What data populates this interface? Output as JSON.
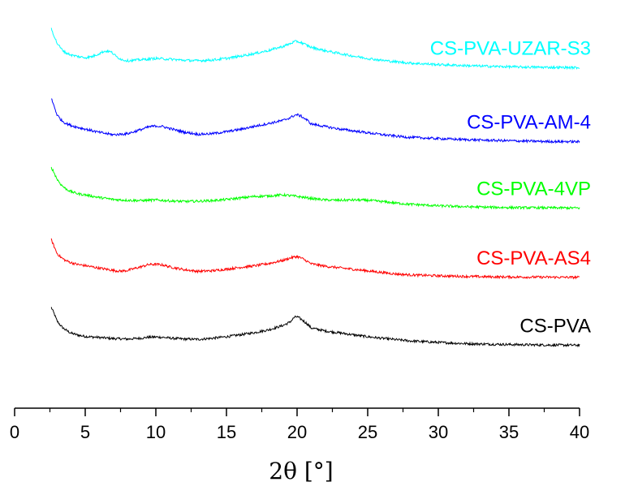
{
  "chart_data": {
    "type": "line",
    "title": "",
    "xlabel": "2θ [°]",
    "ylabel": "",
    "xlim": [
      0,
      40
    ],
    "xticks": [
      0,
      5,
      10,
      15,
      20,
      25,
      30,
      35,
      40
    ],
    "y_axis_visible": false,
    "grid": false,
    "legend": "inline labels at right end of each curve",
    "series": [
      {
        "name": "CS-PVA",
        "color": "#000000",
        "x": [
          2.6,
          2.8,
          3.0,
          3.3,
          3.6,
          4.0,
          4.5,
          5.0,
          6.0,
          7.0,
          8.0,
          9.0,
          9.5,
          10.0,
          10.5,
          11.0,
          12.0,
          13.0,
          14.0,
          15.0,
          16.0,
          17.0,
          18.0,
          19.0,
          19.5,
          19.8,
          20.0,
          20.3,
          20.7,
          21.0,
          22.0,
          23.0,
          24.0,
          25.0,
          26.0,
          27.0,
          28.0,
          30.0,
          32.0,
          34.0,
          36.0,
          38.0,
          40.0
        ],
        "y": [
          5.85,
          5.45,
          4.98,
          4.62,
          4.4,
          4.18,
          4.05,
          3.97,
          3.9,
          3.83,
          3.8,
          3.86,
          3.92,
          3.93,
          3.91,
          3.86,
          3.8,
          3.78,
          3.85,
          3.95,
          4.08,
          4.22,
          4.4,
          4.68,
          4.9,
          5.2,
          5.25,
          5.08,
          4.8,
          4.52,
          4.32,
          4.2,
          4.07,
          3.95,
          3.85,
          3.76,
          3.68,
          3.58,
          3.5,
          3.46,
          3.43,
          3.41,
          3.4
        ]
      },
      {
        "name": "CS-PVA-AS4",
        "color": "#ff0000",
        "x": [
          2.6,
          2.8,
          3.0,
          3.3,
          3.6,
          4.0,
          4.5,
          5.0,
          6.0,
          7.0,
          7.5,
          8.0,
          9.0,
          9.5,
          10.0,
          10.5,
          11.0,
          12.0,
          13.0,
          14.0,
          15.0,
          16.0,
          17.0,
          18.0,
          19.0,
          19.5,
          19.8,
          20.0,
          20.3,
          20.7,
          21.0,
          22.0,
          23.0,
          24.0,
          25.0,
          26.0,
          27.0,
          28.0,
          30.0,
          32.0,
          34.0,
          36.0,
          38.0,
          40.0
        ],
        "y": [
          10.25,
          9.8,
          9.36,
          9.08,
          8.9,
          8.75,
          8.63,
          8.56,
          8.4,
          8.25,
          8.2,
          8.25,
          8.5,
          8.63,
          8.65,
          8.6,
          8.48,
          8.3,
          8.19,
          8.23,
          8.33,
          8.45,
          8.55,
          8.7,
          8.9,
          9.05,
          9.12,
          9.15,
          9.05,
          8.85,
          8.68,
          8.52,
          8.42,
          8.32,
          8.22,
          8.12,
          8.02,
          7.96,
          7.9,
          7.86,
          7.83,
          7.82,
          7.81,
          7.8
        ]
      },
      {
        "name": "CS-PVA-4VP",
        "color": "#00ff00",
        "x": [
          2.6,
          2.8,
          3.0,
          3.3,
          3.6,
          4.0,
          4.5,
          5.0,
          6.0,
          7.0,
          8.0,
          9.0,
          10.0,
          11.0,
          12.0,
          13.0,
          14.0,
          15.0,
          16.0,
          17.0,
          18.0,
          19.0,
          20.0,
          21.0,
          22.0,
          23.0,
          24.0,
          25.0,
          26.0,
          27.0,
          28.0,
          30.0,
          32.0,
          34.0,
          36.0,
          38.0,
          40.0
        ],
        "y": [
          14.95,
          14.58,
          14.18,
          13.8,
          13.56,
          13.36,
          13.22,
          13.15,
          12.98,
          12.85,
          12.8,
          12.78,
          12.82,
          12.76,
          12.72,
          12.74,
          12.78,
          12.85,
          12.95,
          13.05,
          13.08,
          13.15,
          13.05,
          12.92,
          12.82,
          12.8,
          12.82,
          12.8,
          12.72,
          12.62,
          12.54,
          12.44,
          12.38,
          12.34,
          12.32,
          12.31,
          12.3
        ]
      },
      {
        "name": "CS-PVA-AM-4",
        "color": "#0000ff",
        "x": [
          2.6,
          2.8,
          3.0,
          3.3,
          3.6,
          4.0,
          4.5,
          5.0,
          6.0,
          7.0,
          8.0,
          9.0,
          9.5,
          10.0,
          10.5,
          11.0,
          12.0,
          13.0,
          14.0,
          15.0,
          16.0,
          17.0,
          18.0,
          19.0,
          19.5,
          19.8,
          20.0,
          20.3,
          20.7,
          21.0,
          22.0,
          23.0,
          24.0,
          25.0,
          26.0,
          27.0,
          28.0,
          30.0,
          32.0,
          34.0,
          36.0,
          38.0,
          40.0
        ],
        "y": [
          19.4,
          18.9,
          18.35,
          18.0,
          17.8,
          17.65,
          17.52,
          17.42,
          17.2,
          17.05,
          17.12,
          17.4,
          17.56,
          17.62,
          17.58,
          17.45,
          17.22,
          17.08,
          17.12,
          17.25,
          17.4,
          17.6,
          17.78,
          17.98,
          18.15,
          18.3,
          18.35,
          18.25,
          18.0,
          17.75,
          17.58,
          17.42,
          17.3,
          17.18,
          17.06,
          16.96,
          16.88,
          16.8,
          16.73,
          16.68,
          16.64,
          16.61,
          16.6
        ]
      },
      {
        "name": "CS-PVA-UZAR-S3",
        "color": "#00ffff",
        "x": [
          2.6,
          2.8,
          3.0,
          3.3,
          3.6,
          4.0,
          4.5,
          5.0,
          5.5,
          6.0,
          6.3,
          6.6,
          6.9,
          7.2,
          7.6,
          8.0,
          9.0,
          10.0,
          11.0,
          12.0,
          13.0,
          14.0,
          15.0,
          16.0,
          17.0,
          18.0,
          19.0,
          19.5,
          19.8,
          20.0,
          20.3,
          20.7,
          21.0,
          22.0,
          23.0,
          24.0,
          25.0,
          26.0,
          27.0,
          28.0,
          30.0,
          32.0,
          34.0,
          36.0,
          38.0,
          40.0
        ],
        "y": [
          23.95,
          23.45,
          23.0,
          22.62,
          22.38,
          22.22,
          22.12,
          22.05,
          22.12,
          22.32,
          22.45,
          22.48,
          22.38,
          22.12,
          21.92,
          21.85,
          21.92,
          22.0,
          21.95,
          21.88,
          21.85,
          21.9,
          22.0,
          22.15,
          22.32,
          22.52,
          22.78,
          22.95,
          23.08,
          23.1,
          23.02,
          22.85,
          22.72,
          22.5,
          22.32,
          22.15,
          22.0,
          21.88,
          21.78,
          21.7,
          21.6,
          21.53,
          21.48,
          21.44,
          21.42,
          21.4
        ]
      }
    ]
  }
}
